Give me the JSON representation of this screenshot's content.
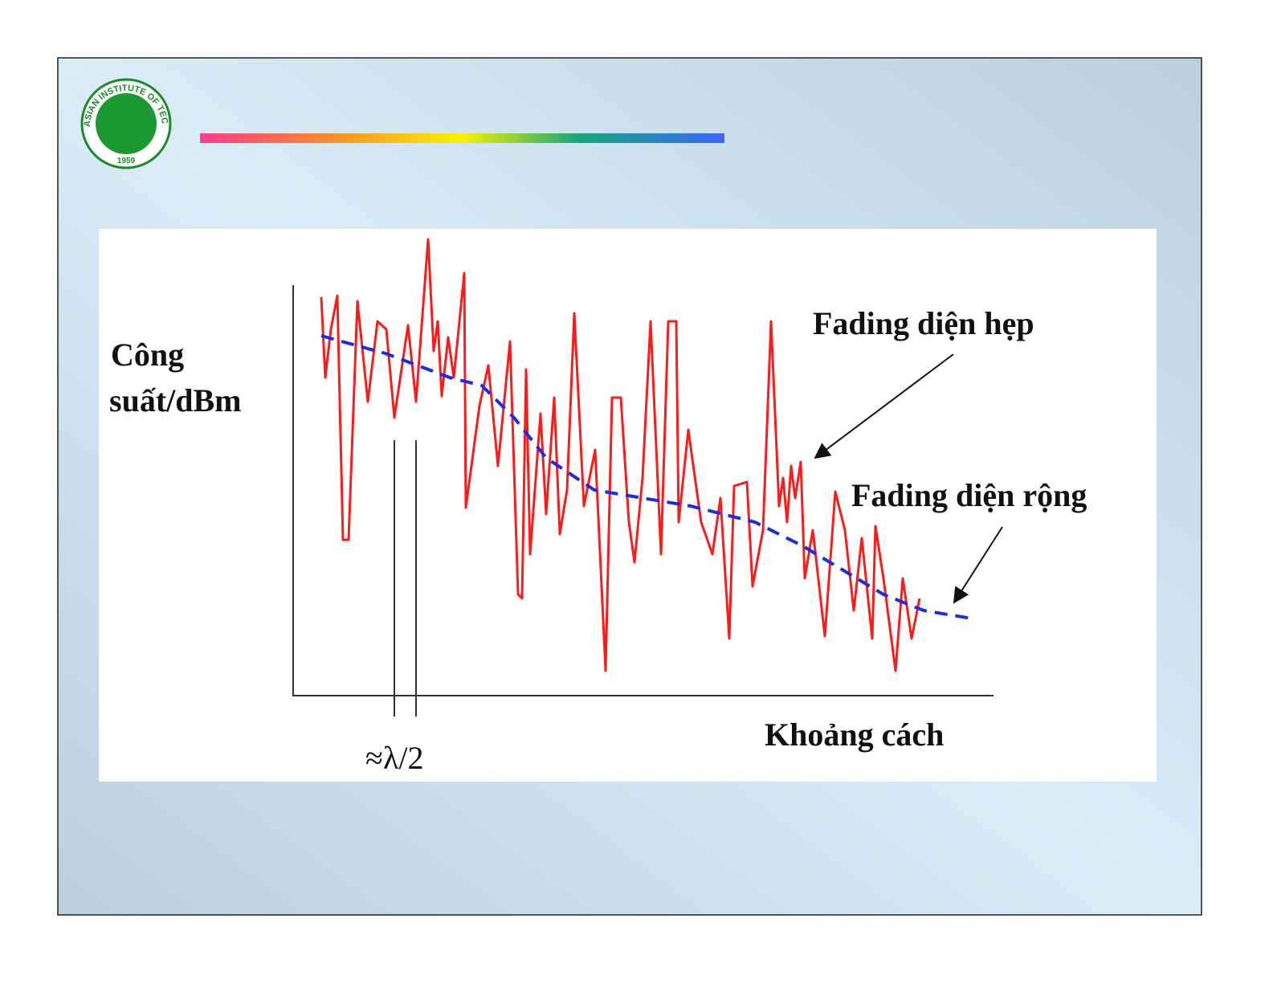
{
  "logo": {
    "name": "ASIAN INSTITUTE OF TECHNOLOGY",
    "year": "1959"
  },
  "figure": {
    "y_label_line1": "Công",
    "y_label_line2": "suất/dBm",
    "x_label": "Khoảng cách",
    "spacing_label": "≈λ/2",
    "narrow_label": "Fading diện hẹp",
    "wide_label": "Fading diện rộng"
  }
}
